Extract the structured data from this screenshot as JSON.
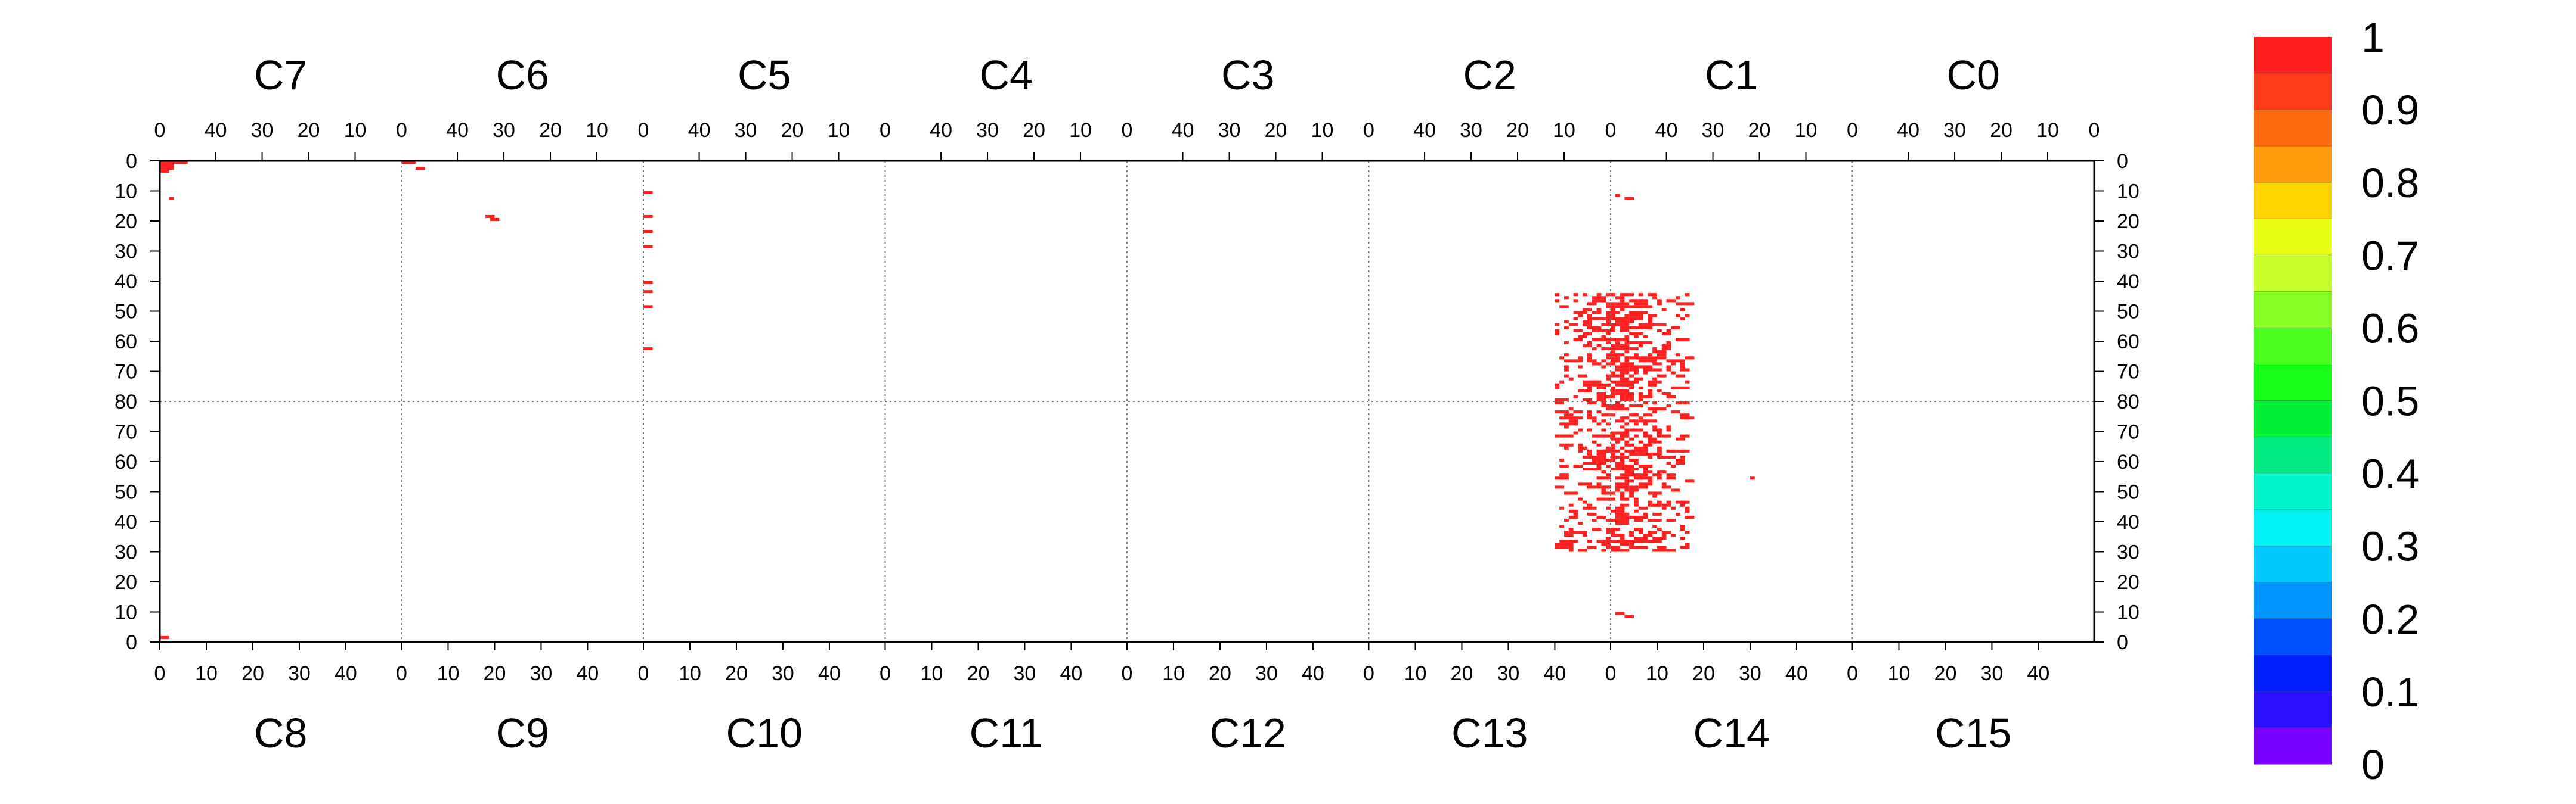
{
  "chart_data": {
    "type": "heatmap",
    "top_chips": [
      "C7",
      "C6",
      "C5",
      "C4",
      "C3",
      "C2",
      "C1",
      "C0"
    ],
    "bottom_chips": [
      "C8",
      "C9",
      "C10",
      "C11",
      "C12",
      "C13",
      "C14",
      "C15"
    ],
    "top_column_ticks": [
      "40",
      "30",
      "20",
      "10",
      "0"
    ],
    "bottom_column_ticks": [
      "0",
      "10",
      "20",
      "30",
      "40"
    ],
    "row_ticks": [
      "0",
      "10",
      "20",
      "30",
      "40",
      "50",
      "60",
      "70",
      "80",
      "70",
      "60",
      "50",
      "40",
      "30",
      "20",
      "10",
      "0"
    ],
    "columns_per_chip": 52,
    "rows_per_half": 80,
    "grid": "dotted chip boundaries",
    "colorbar": {
      "labels": [
        "1",
        "0.9",
        "0.8",
        "0.7",
        "0.6",
        "0.5",
        "0.4",
        "0.3",
        "0.2",
        "0.1",
        "0"
      ],
      "colors": [
        "#ff1f1f",
        "#ff3a1a",
        "#ff6a10",
        "#ff9a0a",
        "#ffd400",
        "#e8ff14",
        "#c6ff2a",
        "#86ff22",
        "#4cff1e",
        "#16ff16",
        "#00f036",
        "#00e880",
        "#00f2c8",
        "#00f2f2",
        "#00c8ff",
        "#0096ff",
        "#0050ff",
        "#0020ff",
        "#2a10ff",
        "#7a00ff"
      ]
    },
    "hits": [
      {
        "row": 0,
        "chip": "C7",
        "col": 51,
        "span": 6,
        "value": 1
      },
      {
        "row": 1,
        "chip": "C7",
        "col": 51,
        "span": 3,
        "value": 1
      },
      {
        "row": 2,
        "chip": "C7",
        "col": 51,
        "span": 3,
        "value": 1
      },
      {
        "row": 3,
        "chip": "C7",
        "col": 51,
        "span": 2,
        "value": 1
      },
      {
        "row": 12,
        "chip": "C7",
        "col": 49,
        "span": 1,
        "value": 1
      },
      {
        "row": 0,
        "chip": "C6",
        "col": 51,
        "span": 3,
        "value": 1
      },
      {
        "row": 2,
        "chip": "C6",
        "col": 48,
        "span": 2,
        "value": 1
      },
      {
        "row": 18,
        "chip": "C6",
        "col": 33,
        "span": 2,
        "value": 1
      },
      {
        "row": 19,
        "chip": "C6",
        "col": 32,
        "span": 2,
        "value": 1
      },
      {
        "row": 10,
        "chip": "C5",
        "col": 51,
        "span": 2,
        "value": 1
      },
      {
        "row": 18,
        "chip": "C5",
        "col": 51,
        "span": 2,
        "value": 1
      },
      {
        "row": 23,
        "chip": "C5",
        "col": 51,
        "span": 2,
        "value": 1
      },
      {
        "row": 28,
        "chip": "C5",
        "col": 51,
        "span": 2,
        "value": 1
      },
      {
        "row": 40,
        "chip": "C5",
        "col": 51,
        "span": 2,
        "value": 1
      },
      {
        "row": 43,
        "chip": "C5",
        "col": 51,
        "span": 2,
        "value": 1
      },
      {
        "row": 48,
        "chip": "C5",
        "col": 51,
        "span": 2,
        "value": 1
      },
      {
        "row": 62,
        "chip": "C5",
        "col": 51,
        "span": 2,
        "value": 1
      },
      {
        "row": 11,
        "chip": "C1",
        "col": 50,
        "span": 1,
        "value": 1
      },
      {
        "row": 12,
        "chip": "C1",
        "col": 48,
        "span": 2,
        "value": 1
      },
      {
        "row": 1,
        "chip": "C8",
        "col": 0,
        "span": 2,
        "value": 1
      },
      {
        "row": 8,
        "chip": "C14",
        "col": 3,
        "span": 2,
        "value": 1
      },
      {
        "row": 9,
        "chip": "C14",
        "col": 1,
        "span": 2,
        "value": 1
      },
      {
        "row": 54,
        "chip": "C14",
        "col": 30,
        "span": 1,
        "value": 1
      }
    ],
    "hit_cluster": {
      "chips": [
        "C2",
        "C1",
        "C13",
        "C14"
      ],
      "top_rows": [
        44,
        80
      ],
      "bottom_rows": [
        30,
        80
      ],
      "columns": [
        -12,
        16
      ],
      "value": 1
    }
  }
}
